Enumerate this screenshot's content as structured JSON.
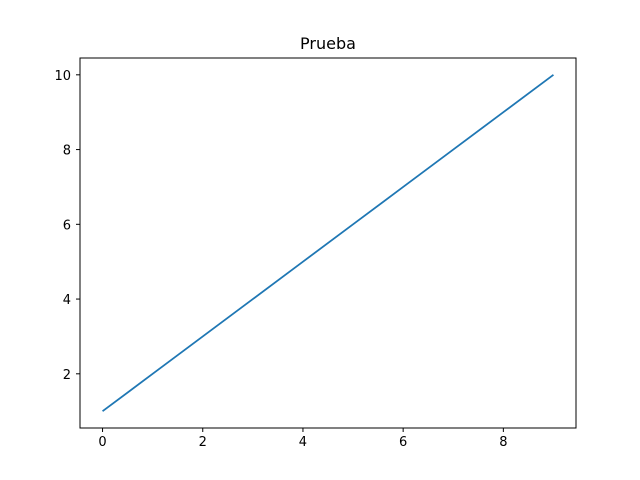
{
  "chart_data": {
    "type": "line",
    "title": "Prueba",
    "xlabel": "",
    "ylabel": "",
    "x": [
      0,
      1,
      2,
      3,
      4,
      5,
      6,
      7,
      8,
      9
    ],
    "series": [
      {
        "values": [
          1,
          2,
          3,
          4,
          5,
          6,
          7,
          8,
          9,
          10
        ],
        "color": "#1f77b4"
      }
    ],
    "xlim": [
      -0.45,
      9.45
    ],
    "ylim": [
      0.55,
      10.45
    ],
    "xticks": [
      0,
      2,
      4,
      6,
      8
    ],
    "yticks": [
      2,
      4,
      6,
      8,
      10
    ],
    "grid": false,
    "legend": "none"
  }
}
